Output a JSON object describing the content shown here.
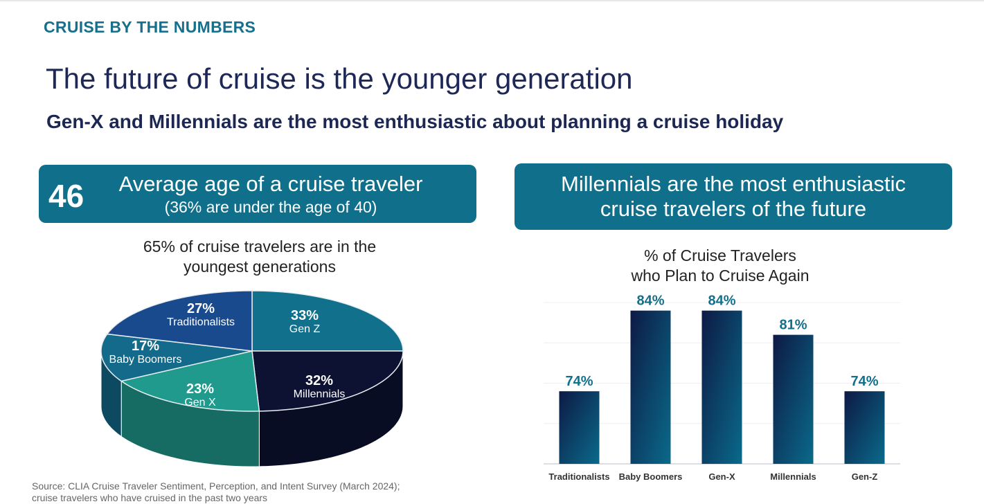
{
  "header": {
    "kicker": "CRUISE BY THE NUMBERS",
    "title": "The future of cruise is the younger generation",
    "subtitle": "Gen-X and Millennials are the most enthusiastic about planning a cruise holiday"
  },
  "left_box": {
    "number": "46",
    "line1": "Average age of a cruise traveler",
    "line2": "(36% are under the age of 40)"
  },
  "right_box": {
    "line1": "Millennials are the most enthusiastic",
    "line2": "cruise travelers of the future"
  },
  "source": {
    "line1": "Source: CLIA Cruise Traveler Sentiment, Perception, and Intent Survey (March 2024);",
    "line2": "cruise travelers who have cruised in the past two years"
  },
  "chart_data": [
    {
      "type": "pie",
      "title_line1": "65% of cruise travelers are in the",
      "title_line2": "youngest generations",
      "slices": [
        {
          "label": "Gen Z",
          "value": 33,
          "display": "33%",
          "color": "#11708c"
        },
        {
          "label": "Millennials",
          "value": 32,
          "display": "32%",
          "color": "#0d1233"
        },
        {
          "label": "Gen X",
          "value": 23,
          "display": "23%",
          "color": "#1f9a8c"
        },
        {
          "label": "Baby Boomers",
          "value": 17,
          "display": "17%",
          "color": "#136a8a"
        },
        {
          "label": "Traditionalists",
          "value": 27,
          "display": "27%",
          "color": "#1a4a8e"
        }
      ]
    },
    {
      "type": "bar",
      "title_line1": "% of Cruise Travelers",
      "title_line2": "who Plan to Cruise Again",
      "categories": [
        "Traditionalists",
        "Baby Boomers",
        "Gen-X",
        "Millennials",
        "Gen-Z"
      ],
      "values": [
        74,
        84,
        84,
        81,
        74
      ],
      "labels": [
        "74%",
        "84%",
        "84%",
        "81%",
        "74%"
      ],
      "ylim": [
        65,
        85
      ],
      "grid": true,
      "label_color": "#136f8a"
    }
  ]
}
